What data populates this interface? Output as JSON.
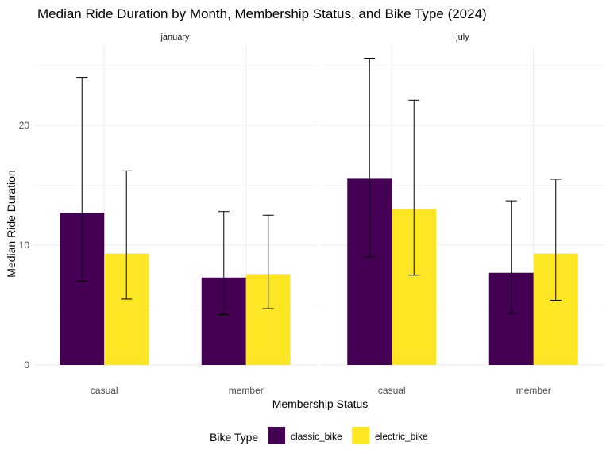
{
  "chart_data": {
    "type": "bar",
    "title": "Median Ride Duration by Month, Membership Status, and Bike Type (2024)",
    "xlabel": "Membership Status",
    "ylabel": "Median Ride Duration",
    "ylim": [
      0,
      25
    ],
    "yticks": [
      0,
      10,
      20
    ],
    "grid": true,
    "legend": {
      "title": "Bike Type",
      "placement": "bottom"
    },
    "categories": [
      "casual",
      "member"
    ],
    "series": [
      {
        "name": "classic_bike",
        "color": "#440154"
      },
      {
        "name": "electric_bike",
        "color": "#FDE725"
      }
    ],
    "panels": [
      {
        "label": "january",
        "values": {
          "classic_bike": [
            12.7,
            7.3
          ],
          "electric_bike": [
            9.3,
            7.6
          ]
        },
        "error_bars": {
          "classic_bike": [
            [
              7.0,
              24.0
            ],
            [
              4.2,
              12.8
            ]
          ],
          "electric_bike": [
            [
              5.5,
              16.2
            ],
            [
              4.7,
              12.5
            ]
          ]
        }
      },
      {
        "label": "july",
        "values": {
          "classic_bike": [
            15.6,
            7.7
          ],
          "electric_bike": [
            13.0,
            9.3
          ]
        },
        "error_bars": {
          "classic_bike": [
            [
              9.0,
              25.6
            ],
            [
              4.3,
              13.7
            ]
          ],
          "electric_bike": [
            [
              7.5,
              22.1
            ],
            [
              5.4,
              15.5
            ]
          ]
        }
      }
    ]
  }
}
